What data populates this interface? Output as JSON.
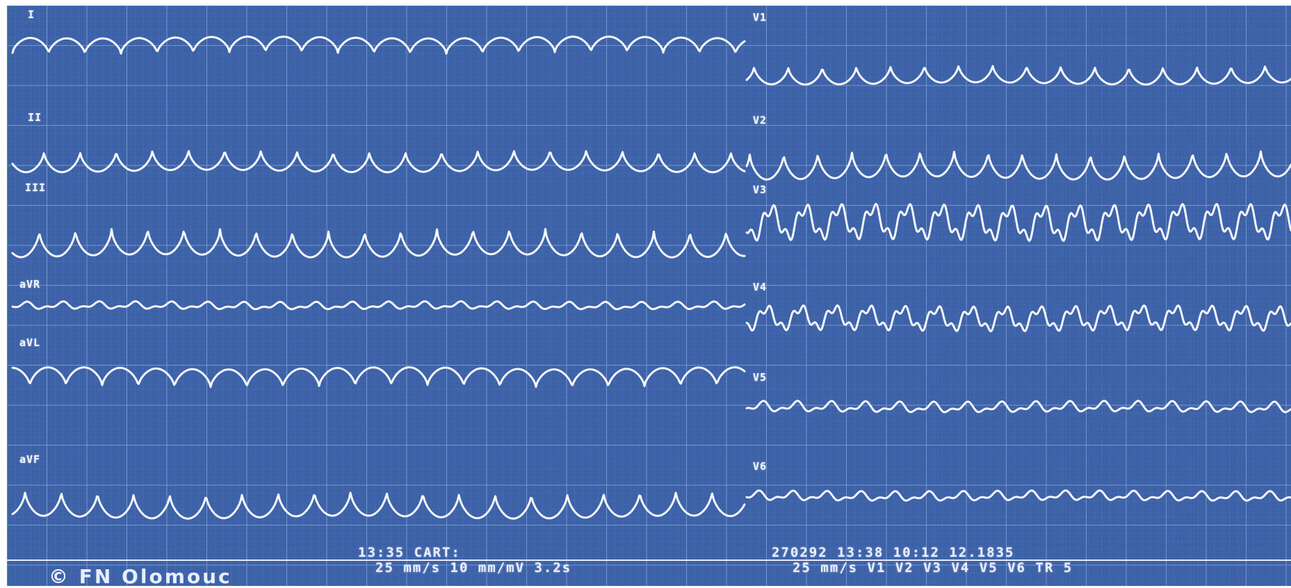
{
  "leads": {
    "left": [
      "I",
      "II",
      "III",
      "aVR",
      "aVL",
      "aVF"
    ],
    "right": [
      "V1",
      "V2",
      "V3",
      "V4",
      "V5",
      "V6"
    ]
  },
  "footer": {
    "line1_left": "13:35 CART:",
    "line1_right": "270292 13:38 10:12 12.1835",
    "line2_left": "25 mm/s 10 mm/mV 3.2s",
    "line2_right": "25 mm/s V1 V2 V3 V4 V5 V6 TR 5",
    "copyright": "© FN Olomouc"
  },
  "colors": {
    "paper": "#3d62a8",
    "grid_minor": "#5a7cc0",
    "grid_major": "#8aa5dc",
    "trace": "#f4f7ff"
  }
}
